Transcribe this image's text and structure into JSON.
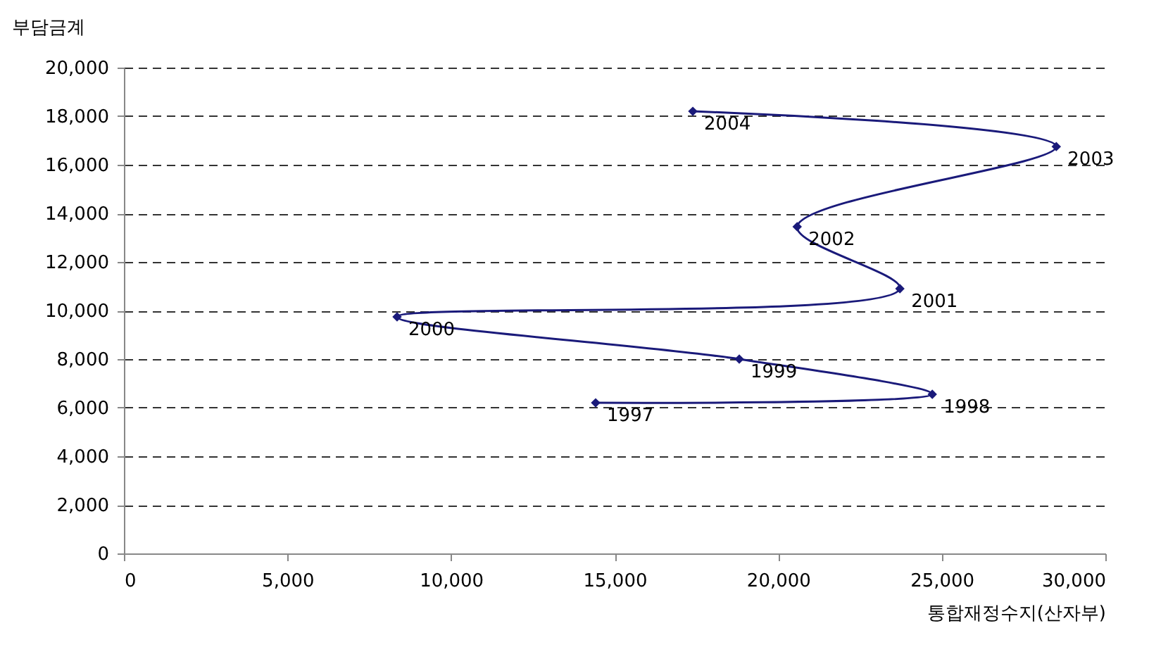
{
  "chart_data": {
    "type": "line",
    "xlabel": "통합재정수지(산자부)",
    "ylabel": "부담금계",
    "x": [
      14420,
      24710,
      18810,
      8350,
      23720,
      20580,
      28500,
      17390
    ],
    "series": [
      {
        "color": "#1a1a7a",
        "values": [
          6200,
          6550,
          8000,
          9740,
          10900,
          13450,
          16750,
          18200
        ]
      }
    ],
    "annotations": [
      {
        "text": "1997",
        "x": 14420,
        "y": 6200
      },
      {
        "text": "1998",
        "x": 24710,
        "y": 6550
      },
      {
        "text": "1999",
        "x": 18810,
        "y": 8000
      },
      {
        "text": "2000",
        "x": 8350,
        "y": 9740
      },
      {
        "text": "2001",
        "x": 23720,
        "y": 10900
      },
      {
        "text": "2002",
        "x": 20580,
        "y": 13450
      },
      {
        "text": "2003",
        "x": 28500,
        "y": 16750
      },
      {
        "text": "2004",
        "x": 17390,
        "y": 18200
      }
    ],
    "xlim": [
      0,
      30000
    ],
    "xticks": [
      0,
      {
        "value": 5000,
        "label": "5,000"
      },
      {
        "value": 10000,
        "label": "10,000"
      },
      {
        "value": 15000,
        "label": "15,000"
      },
      {
        "value": 20000,
        "label": "20,000"
      },
      {
        "value": 25000,
        "label": "25,000"
      },
      {
        "value": 30000,
        "label": "30,000"
      }
    ],
    "ylim": [
      0,
      20000
    ],
    "yticks": [
      0,
      {
        "value": 2000,
        "label": "2,000"
      },
      {
        "value": 4000,
        "label": "4,000"
      },
      {
        "value": 6000,
        "label": "6,000"
      },
      {
        "value": 8000,
        "label": "8,000"
      },
      {
        "value": 10000,
        "label": "10,000"
      },
      {
        "value": 12000,
        "label": "12,000"
      },
      {
        "value": 14000,
        "label": "14,000"
      },
      {
        "value": 16000,
        "label": "16,000"
      },
      {
        "value": 18000,
        "label": "18,000"
      },
      {
        "value": 20000,
        "label": "20,000"
      }
    ],
    "grid": "y",
    "marker": "diamond",
    "line_style": "solid"
  }
}
